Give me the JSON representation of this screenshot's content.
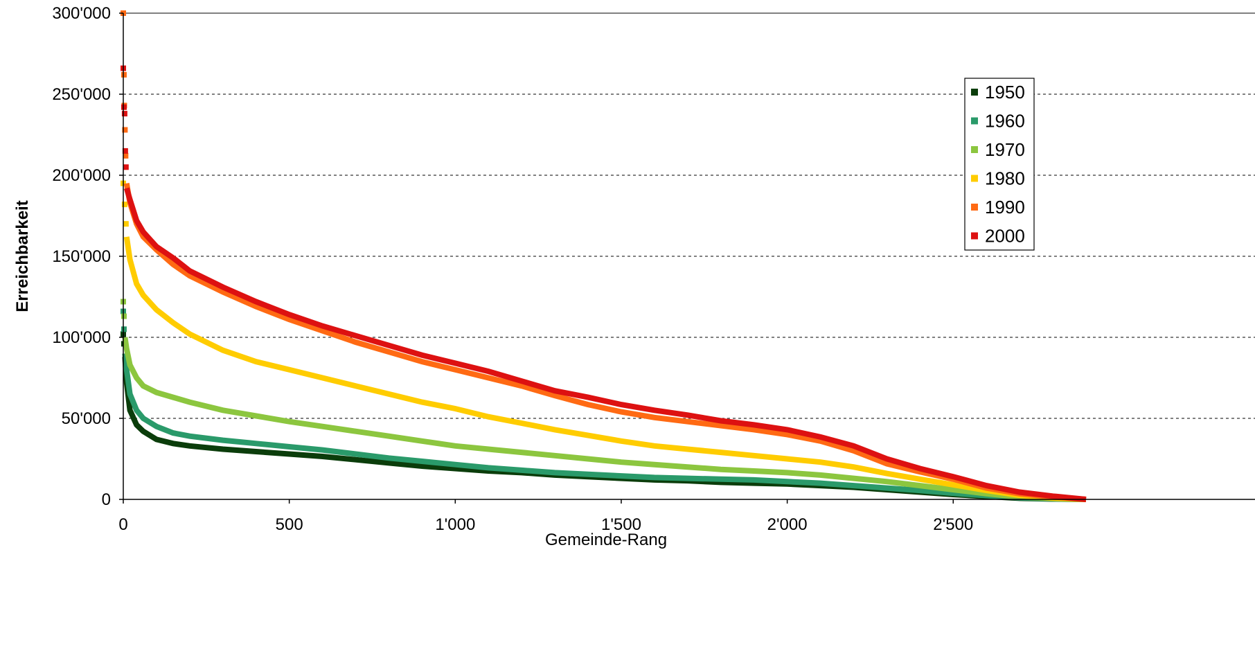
{
  "chart_data": {
    "type": "scatter",
    "title": "",
    "xlabel": "Gemeinde-Rang",
    "ylabel": "Erreichbarkeit",
    "xlim": [
      0,
      2900
    ],
    "ylim": [
      0,
      300000
    ],
    "x_ticks": [
      {
        "value": 0,
        "label": "0"
      },
      {
        "value": 500,
        "label": "500"
      },
      {
        "value": 1000,
        "label": "1'000"
      },
      {
        "value": 1500,
        "label": "1'500"
      },
      {
        "value": 2000,
        "label": "2'000"
      },
      {
        "value": 2500,
        "label": "2'500"
      }
    ],
    "y_ticks": [
      {
        "value": 0,
        "label": "0"
      },
      {
        "value": 50000,
        "label": "50'000"
      },
      {
        "value": 100000,
        "label": "100'000"
      },
      {
        "value": 150000,
        "label": "150'000"
      },
      {
        "value": 200000,
        "label": "200'000"
      },
      {
        "value": 250000,
        "label": "250'000"
      },
      {
        "value": 300000,
        "label": "300'000"
      }
    ],
    "grid": "horizontal dashed",
    "legend_position": "right",
    "series": [
      {
        "name": "1950",
        "color": "#0b3d0b",
        "outliers": [
          [
            0,
            102000
          ],
          [
            2,
            96000
          ]
        ],
        "points": [
          [
            5,
            88000
          ],
          [
            10,
            72000
          ],
          [
            20,
            55000
          ],
          [
            40,
            46000
          ],
          [
            60,
            42000
          ],
          [
            100,
            37000
          ],
          [
            150,
            34500
          ],
          [
            200,
            33000
          ],
          [
            300,
            31000
          ],
          [
            400,
            29500
          ],
          [
            500,
            28000
          ],
          [
            600,
            26500
          ],
          [
            700,
            24500
          ],
          [
            800,
            22500
          ],
          [
            900,
            20500
          ],
          [
            1000,
            19000
          ],
          [
            1100,
            17500
          ],
          [
            1200,
            16500
          ],
          [
            1300,
            15000
          ],
          [
            1400,
            14000
          ],
          [
            1500,
            13000
          ],
          [
            1600,
            12000
          ],
          [
            1700,
            11500
          ],
          [
            1800,
            10500
          ],
          [
            1900,
            10000
          ],
          [
            2000,
            9500
          ],
          [
            2100,
            8500
          ],
          [
            2200,
            7500
          ],
          [
            2300,
            6000
          ],
          [
            2400,
            4500
          ],
          [
            2500,
            3000
          ],
          [
            2600,
            1800
          ],
          [
            2700,
            700
          ],
          [
            2800,
            200
          ],
          [
            2900,
            0
          ]
        ]
      },
      {
        "name": "1960",
        "color": "#2a9a6a",
        "outliers": [
          [
            0,
            116000
          ],
          [
            2,
            105000
          ]
        ],
        "points": [
          [
            5,
            90000
          ],
          [
            10,
            80000
          ],
          [
            20,
            65000
          ],
          [
            40,
            55000
          ],
          [
            60,
            50000
          ],
          [
            100,
            45000
          ],
          [
            150,
            41000
          ],
          [
            200,
            39000
          ],
          [
            300,
            36500
          ],
          [
            400,
            34500
          ],
          [
            500,
            32500
          ],
          [
            600,
            30500
          ],
          [
            700,
            28000
          ],
          [
            800,
            25500
          ],
          [
            900,
            23500
          ],
          [
            1000,
            21500
          ],
          [
            1100,
            19500
          ],
          [
            1200,
            18000
          ],
          [
            1300,
            16500
          ],
          [
            1400,
            15500
          ],
          [
            1500,
            14500
          ],
          [
            1600,
            13500
          ],
          [
            1700,
            13000
          ],
          [
            1800,
            12500
          ],
          [
            1900,
            12000
          ],
          [
            2000,
            11000
          ],
          [
            2100,
            10000
          ],
          [
            2200,
            8500
          ],
          [
            2300,
            7000
          ],
          [
            2400,
            5500
          ],
          [
            2500,
            3800
          ],
          [
            2600,
            2300
          ],
          [
            2700,
            1000
          ],
          [
            2800,
            300
          ],
          [
            2900,
            0
          ]
        ]
      },
      {
        "name": "1970",
        "color": "#8cc63f",
        "outliers": [
          [
            0,
            122000
          ],
          [
            2,
            113000
          ]
        ],
        "points": [
          [
            5,
            100000
          ],
          [
            10,
            93000
          ],
          [
            20,
            83000
          ],
          [
            40,
            75000
          ],
          [
            60,
            70000
          ],
          [
            100,
            66000
          ],
          [
            150,
            63000
          ],
          [
            200,
            60000
          ],
          [
            300,
            55000
          ],
          [
            400,
            51500
          ],
          [
            500,
            48000
          ],
          [
            600,
            45000
          ],
          [
            700,
            42000
          ],
          [
            800,
            39000
          ],
          [
            900,
            36000
          ],
          [
            1000,
            33000
          ],
          [
            1100,
            31000
          ],
          [
            1200,
            29000
          ],
          [
            1300,
            27000
          ],
          [
            1400,
            25000
          ],
          [
            1500,
            23000
          ],
          [
            1600,
            21500
          ],
          [
            1700,
            20000
          ],
          [
            1800,
            18500
          ],
          [
            1900,
            17500
          ],
          [
            2000,
            16500
          ],
          [
            2100,
            15000
          ],
          [
            2200,
            13000
          ],
          [
            2300,
            11000
          ],
          [
            2400,
            8500
          ],
          [
            2500,
            6000
          ],
          [
            2600,
            3500
          ],
          [
            2700,
            1500
          ],
          [
            2800,
            500
          ],
          [
            2900,
            0
          ]
        ]
      },
      {
        "name": "1980",
        "color": "#ffcc00",
        "outliers": [
          [
            0,
            195000
          ],
          [
            4,
            182000
          ],
          [
            8,
            170000
          ]
        ],
        "points": [
          [
            10,
            162000
          ],
          [
            20,
            148000
          ],
          [
            40,
            133000
          ],
          [
            60,
            126000
          ],
          [
            100,
            117000
          ],
          [
            150,
            109000
          ],
          [
            200,
            102000
          ],
          [
            300,
            92000
          ],
          [
            400,
            85000
          ],
          [
            500,
            80000
          ],
          [
            600,
            75000
          ],
          [
            700,
            70000
          ],
          [
            800,
            65000
          ],
          [
            900,
            60000
          ],
          [
            1000,
            56000
          ],
          [
            1100,
            51000
          ],
          [
            1200,
            47000
          ],
          [
            1300,
            43000
          ],
          [
            1400,
            39500
          ],
          [
            1500,
            36000
          ],
          [
            1600,
            33000
          ],
          [
            1700,
            31000
          ],
          [
            1800,
            29000
          ],
          [
            1900,
            27000
          ],
          [
            2000,
            25000
          ],
          [
            2100,
            23000
          ],
          [
            2200,
            20000
          ],
          [
            2300,
            16000
          ],
          [
            2400,
            12500
          ],
          [
            2500,
            9000
          ],
          [
            2600,
            5500
          ],
          [
            2700,
            2500
          ],
          [
            2800,
            800
          ],
          [
            2900,
            0
          ]
        ]
      },
      {
        "name": "1990",
        "color": "#ff6a13",
        "outliers": [
          [
            0,
            300000
          ],
          [
            2,
            262000
          ],
          [
            3,
            243000
          ],
          [
            5,
            228000
          ],
          [
            7,
            212000
          ]
        ],
        "points": [
          [
            10,
            195000
          ],
          [
            20,
            183000
          ],
          [
            40,
            170000
          ],
          [
            60,
            162000
          ],
          [
            100,
            154000
          ],
          [
            150,
            145000
          ],
          [
            200,
            138000
          ],
          [
            300,
            128000
          ],
          [
            400,
            119000
          ],
          [
            500,
            111000
          ],
          [
            600,
            104000
          ],
          [
            700,
            97000
          ],
          [
            800,
            91000
          ],
          [
            900,
            85000
          ],
          [
            1000,
            80000
          ],
          [
            1100,
            75000
          ],
          [
            1200,
            70000
          ],
          [
            1300,
            64000
          ],
          [
            1400,
            58500
          ],
          [
            1500,
            54000
          ],
          [
            1600,
            50500
          ],
          [
            1700,
            48000
          ],
          [
            1800,
            45500
          ],
          [
            1900,
            43000
          ],
          [
            2000,
            40000
          ],
          [
            2100,
            36000
          ],
          [
            2200,
            30000
          ],
          [
            2300,
            22000
          ],
          [
            2400,
            17000
          ],
          [
            2500,
            12500
          ],
          [
            2600,
            7000
          ],
          [
            2700,
            3500
          ],
          [
            2800,
            1500
          ],
          [
            2900,
            0
          ]
        ]
      },
      {
        "name": "2000",
        "color": "#dd1111",
        "outliers": [
          [
            0,
            266000
          ],
          [
            2,
            242000
          ],
          [
            4,
            238000
          ],
          [
            6,
            215000
          ],
          [
            8,
            205000
          ]
        ],
        "points": [
          [
            10,
            192000
          ],
          [
            20,
            185000
          ],
          [
            40,
            172000
          ],
          [
            60,
            165000
          ],
          [
            100,
            156000
          ],
          [
            150,
            149000
          ],
          [
            200,
            141000
          ],
          [
            300,
            131000
          ],
          [
            400,
            122000
          ],
          [
            500,
            114000
          ],
          [
            600,
            107000
          ],
          [
            700,
            101000
          ],
          [
            800,
            95000
          ],
          [
            900,
            89000
          ],
          [
            1000,
            84000
          ],
          [
            1100,
            79000
          ],
          [
            1200,
            73000
          ],
          [
            1300,
            67000
          ],
          [
            1400,
            63000
          ],
          [
            1500,
            58500
          ],
          [
            1600,
            55000
          ],
          [
            1700,
            52000
          ],
          [
            1800,
            48500
          ],
          [
            1900,
            46000
          ],
          [
            2000,
            43000
          ],
          [
            2100,
            38500
          ],
          [
            2200,
            33000
          ],
          [
            2300,
            25000
          ],
          [
            2400,
            19000
          ],
          [
            2500,
            14000
          ],
          [
            2600,
            8500
          ],
          [
            2700,
            4500
          ],
          [
            2800,
            2000
          ],
          [
            2900,
            0
          ]
        ]
      }
    ]
  }
}
